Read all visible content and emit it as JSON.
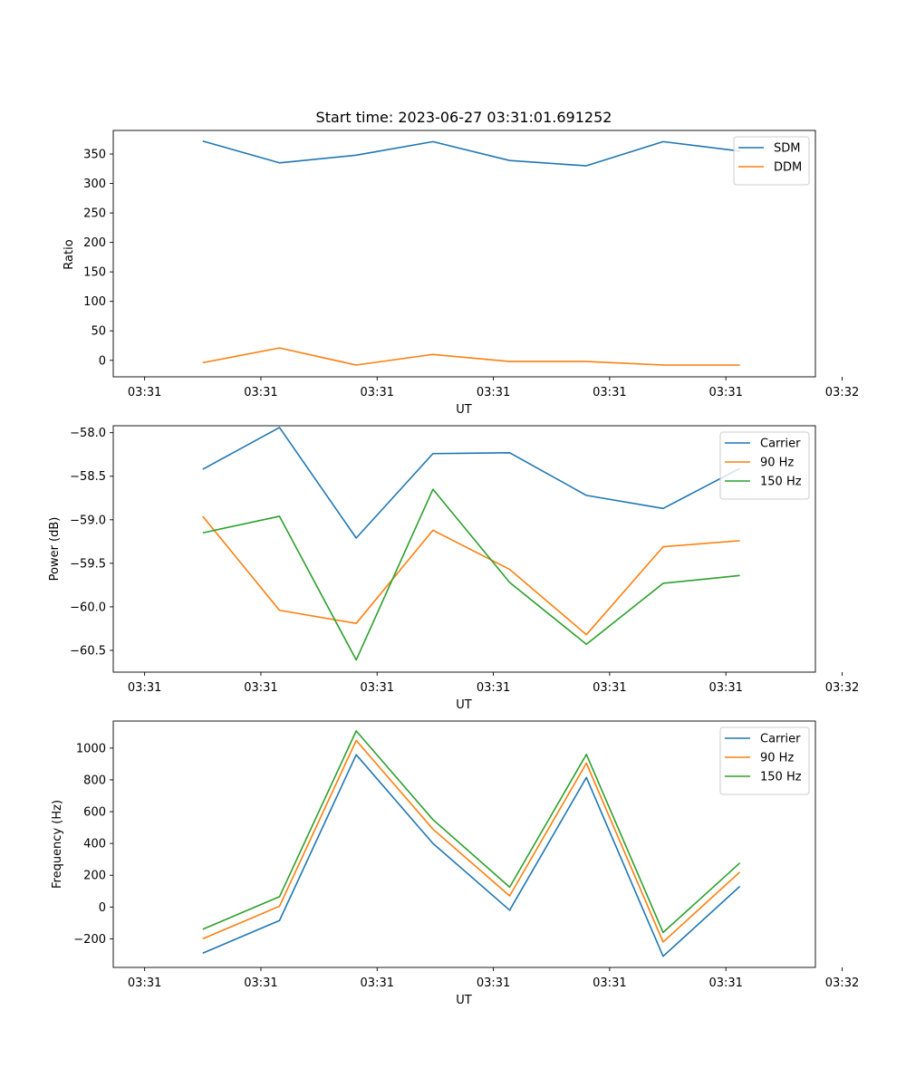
{
  "chart_data": [
    {
      "type": "line",
      "title": "Start time: 2023-06-27 03:31:01.691252",
      "xlabel": "UT",
      "ylabel": "Ratio",
      "x_ticks": [
        "03:31",
        "03:31",
        "03:31",
        "03:31",
        "03:31",
        "03:31",
        "03:32"
      ],
      "y_ticks": [
        "0",
        "50",
        "100",
        "150",
        "200",
        "250",
        "300",
        "350"
      ],
      "xlim": [
        0.73,
        6.77
      ],
      "ylim": [
        -28,
        390
      ],
      "x": [
        1.5,
        2.16,
        2.82,
        3.48,
        4.14,
        4.8,
        5.46,
        6.12
      ],
      "series": [
        {
          "name": "SDM",
          "color": "#1f77b4",
          "values": [
            372,
            335,
            348,
            371,
            339,
            330,
            371,
            355
          ]
        },
        {
          "name": "DDM",
          "color": "#ff7f0e",
          "values": [
            -4,
            21,
            -8,
            10,
            -2,
            -2,
            -8,
            -8
          ]
        }
      ],
      "legend": "top-right"
    },
    {
      "type": "line",
      "title": "",
      "xlabel": "UT",
      "ylabel": "Power (dB)",
      "x_ticks": [
        "03:31",
        "03:31",
        "03:31",
        "03:31",
        "03:31",
        "03:31",
        "03:32"
      ],
      "y_ticks": [
        "−58.0",
        "−58.5",
        "−59.0",
        "−59.5",
        "−60.0",
        "−60.5"
      ],
      "xlim": [
        0.73,
        6.77
      ],
      "ylim": [
        -60.75,
        -57.92
      ],
      "x": [
        1.5,
        2.16,
        2.82,
        3.48,
        4.14,
        4.8,
        5.46,
        6.12
      ],
      "series": [
        {
          "name": "Carrier",
          "color": "#1f77b4",
          "values": [
            -58.42,
            -57.94,
            -59.21,
            -58.24,
            -58.23,
            -58.72,
            -58.87,
            -58.41
          ]
        },
        {
          "name": "90 Hz",
          "color": "#ff7f0e",
          "values": [
            -58.96,
            -60.04,
            -60.19,
            -59.12,
            -59.57,
            -60.32,
            -59.31,
            -59.24
          ]
        },
        {
          "name": "150 Hz",
          "color": "#2ca02c",
          "values": [
            -59.15,
            -58.96,
            -60.61,
            -58.65,
            -59.72,
            -60.43,
            -59.73,
            -59.64
          ]
        }
      ],
      "legend": "top-right"
    },
    {
      "type": "line",
      "title": "",
      "xlabel": "UT",
      "ylabel": "Frequency (Hz)",
      "x_ticks": [
        "03:31",
        "03:31",
        "03:31",
        "03:31",
        "03:31",
        "03:31",
        "03:32"
      ],
      "y_ticks": [
        "−200",
        "0",
        "200",
        "400",
        "600",
        "800",
        "1000"
      ],
      "xlim": [
        0.73,
        6.77
      ],
      "ylim": [
        -380,
        1170
      ],
      "x": [
        1.5,
        2.16,
        2.82,
        3.48,
        4.14,
        4.8,
        5.46,
        6.12
      ],
      "series": [
        {
          "name": "Carrier",
          "color": "#1f77b4",
          "values": [
            -290,
            -85,
            958,
            400,
            -20,
            815,
            -310,
            130
          ]
        },
        {
          "name": "90 Hz",
          "color": "#ff7f0e",
          "values": [
            -200,
            5,
            1048,
            490,
            70,
            905,
            -220,
            220
          ]
        },
        {
          "name": "150 Hz",
          "color": "#2ca02c",
          "values": [
            -140,
            65,
            1108,
            550,
            125,
            960,
            -160,
            277
          ]
        }
      ],
      "legend": "top-right"
    }
  ]
}
